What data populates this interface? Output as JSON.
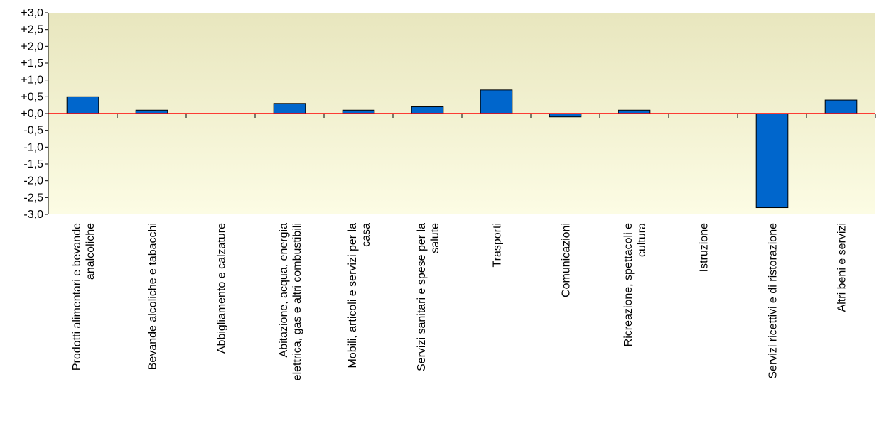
{
  "chart_data": {
    "type": "bar",
    "title": "",
    "xlabel": "",
    "ylabel": "",
    "ylim": [
      -3.0,
      3.0
    ],
    "y_ticks": [
      3.0,
      2.5,
      2.0,
      1.5,
      1.0,
      0.5,
      0.0,
      -0.5,
      -1.0,
      -1.5,
      -2.0,
      -2.5,
      -3.0
    ],
    "y_tick_labels": [
      "+3,0",
      "+2,5",
      "+2,0",
      "+1,5",
      "+1,0",
      "+0,5",
      "+0,0",
      "-0,5",
      "-1,0",
      "-1,5",
      "-2,0",
      "-2,5",
      "-3,0"
    ],
    "grid": false,
    "legend": "none",
    "categories": [
      [
        "Prodotti alimentari e bevande",
        "analcoliche"
      ],
      [
        "Bevande alcoliche e tabacchi"
      ],
      [
        "Abbigliamento e calzature"
      ],
      [
        "Abitazione, acqua, energia",
        "elettrica, gas e altri combustibili"
      ],
      [
        "Mobili, articoli e servizi per la",
        "casa"
      ],
      [
        "Servizi sanitari e spese per la",
        "salute"
      ],
      [
        "Trasporti"
      ],
      [
        "Comunicazioni"
      ],
      [
        "Ricreazione, spettacoli e",
        "cultura"
      ],
      [
        "Istruzione"
      ],
      [
        "Servizi ricettivi e di ristorazione"
      ],
      [
        "Altri beni e servizi"
      ]
    ],
    "values": [
      0.5,
      0.1,
      0.0,
      0.3,
      0.1,
      0.2,
      0.7,
      -0.1,
      0.1,
      0.0,
      -2.8,
      0.4
    ],
    "colors": {
      "bar_fill": "#0066CC",
      "bar_stroke": "#000000",
      "zero_line": "#FF0000",
      "plot_bg_top": "#E8E6BE",
      "plot_bg_bottom": "#FCFCE4",
      "axis": "#000000"
    }
  }
}
